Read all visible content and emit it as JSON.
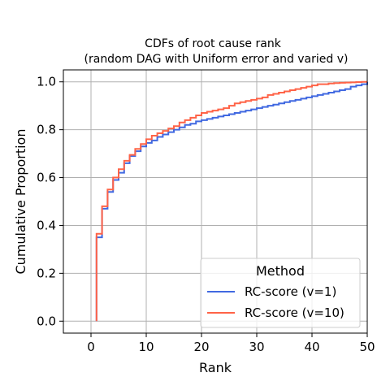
{
  "chart_data": {
    "type": "line",
    "subtype": "step-cdf",
    "title_line1": "CDFs of root cause rank",
    "title_line2": "(random DAG with Uniform error and varied v)",
    "xlabel": "Rank",
    "ylabel": "Cumulative Proportion",
    "xlim": [
      -5,
      50
    ],
    "ylim": [
      -0.05,
      1.05
    ],
    "xticks": [
      0,
      10,
      20,
      30,
      40,
      50
    ],
    "yticks": [
      0.0,
      0.2,
      0.4,
      0.6,
      0.8,
      1.0
    ],
    "grid": true,
    "legend": {
      "title": "Method",
      "placement": "lower-right"
    },
    "series": [
      {
        "name": "RC-score (v=1)",
        "color": "#4169e1",
        "x": [
          1,
          2,
          3,
          4,
          5,
          6,
          7,
          8,
          9,
          10,
          11,
          12,
          13,
          14,
          15,
          16,
          17,
          18,
          19,
          20,
          21,
          22,
          23,
          24,
          25,
          26,
          27,
          28,
          29,
          30,
          31,
          32,
          33,
          34,
          35,
          36,
          37,
          38,
          39,
          40,
          41,
          42,
          43,
          44,
          45,
          46,
          47,
          48,
          49,
          50
        ],
        "y": [
          0.35,
          0.47,
          0.54,
          0.59,
          0.62,
          0.66,
          0.69,
          0.71,
          0.73,
          0.745,
          0.755,
          0.77,
          0.78,
          0.79,
          0.8,
          0.81,
          0.82,
          0.825,
          0.835,
          0.84,
          0.845,
          0.85,
          0.855,
          0.86,
          0.865,
          0.87,
          0.875,
          0.88,
          0.885,
          0.89,
          0.895,
          0.9,
          0.905,
          0.91,
          0.915,
          0.92,
          0.925,
          0.93,
          0.935,
          0.94,
          0.945,
          0.95,
          0.955,
          0.96,
          0.965,
          0.97,
          0.98,
          0.985,
          0.99,
          1.0
        ]
      },
      {
        "name": "RC-score (v=10)",
        "color": "#ff6347",
        "x": [
          1,
          2,
          3,
          4,
          5,
          6,
          7,
          8,
          9,
          10,
          11,
          12,
          13,
          14,
          15,
          16,
          17,
          18,
          19,
          20,
          21,
          22,
          23,
          24,
          25,
          26,
          27,
          28,
          29,
          30,
          31,
          32,
          33,
          34,
          35,
          36,
          37,
          38,
          39,
          40,
          41,
          42,
          43,
          44,
          45,
          46,
          47,
          48,
          49,
          50
        ],
        "y": [
          0.365,
          0.48,
          0.55,
          0.6,
          0.635,
          0.67,
          0.695,
          0.72,
          0.74,
          0.76,
          0.775,
          0.785,
          0.795,
          0.805,
          0.815,
          0.83,
          0.84,
          0.85,
          0.86,
          0.87,
          0.875,
          0.88,
          0.885,
          0.89,
          0.9,
          0.91,
          0.915,
          0.92,
          0.925,
          0.93,
          0.935,
          0.945,
          0.95,
          0.955,
          0.96,
          0.965,
          0.97,
          0.975,
          0.98,
          0.985,
          0.99,
          0.99,
          0.993,
          0.995,
          0.996,
          0.997,
          0.998,
          0.999,
          1.0,
          1.0
        ]
      }
    ]
  }
}
